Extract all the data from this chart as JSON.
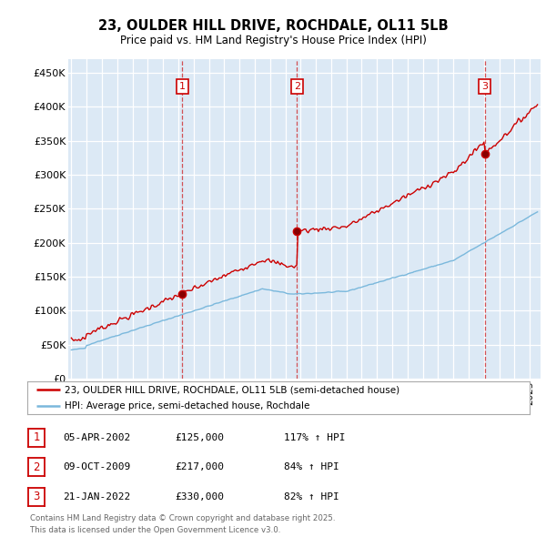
{
  "title": "23, OULDER HILL DRIVE, ROCHDALE, OL11 5LB",
  "subtitle": "Price paid vs. HM Land Registry's House Price Index (HPI)",
  "bg_color": "#dce9f5",
  "ylim": [
    0,
    470000
  ],
  "yticks": [
    0,
    50000,
    100000,
    150000,
    200000,
    250000,
    300000,
    350000,
    400000,
    450000
  ],
  "ytick_labels": [
    "£0",
    "£50K",
    "£100K",
    "£150K",
    "£200K",
    "£250K",
    "£300K",
    "£350K",
    "£400K",
    "£450K"
  ],
  "transactions": [
    {
      "num": 1,
      "date": "05-APR-2002",
      "price": 125000,
      "hpi_pct": "117% ↑ HPI",
      "t": 2002.27
    },
    {
      "num": 2,
      "date": "09-OCT-2009",
      "price": 217000,
      "hpi_pct": "84% ↑ HPI",
      "t": 2009.77
    },
    {
      "num": 3,
      "date": "21-JAN-2022",
      "price": 330000,
      "hpi_pct": "82% ↑ HPI",
      "t": 2022.05
    }
  ],
  "legend_line1": "23, OULDER HILL DRIVE, ROCHDALE, OL11 5LB (semi-detached house)",
  "legend_line2": "HPI: Average price, semi-detached house, Rochdale",
  "footer": "Contains HM Land Registry data © Crown copyright and database right 2025.\nThis data is licensed under the Open Government Licence v3.0.",
  "red_color": "#cc0000",
  "blue_color": "#7ab8dc",
  "xmin": 1994.8,
  "xmax": 2025.7
}
